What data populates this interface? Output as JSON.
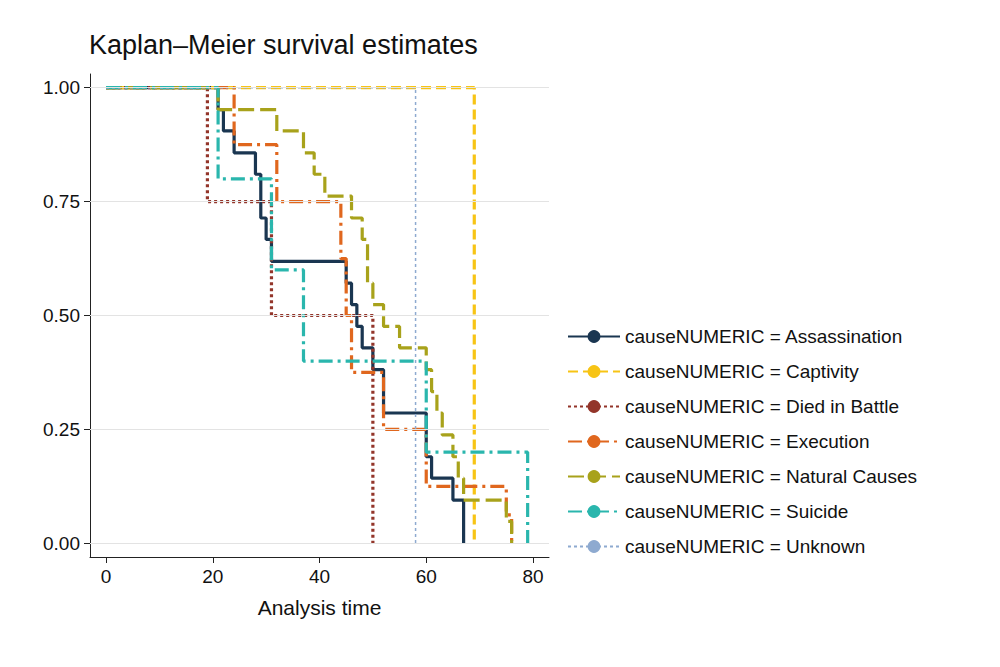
{
  "chart_data": {
    "type": "step",
    "title": "Kaplan–Meier survival estimates",
    "x_label": "Analysis time",
    "xlim": [
      -3,
      83
    ],
    "xticks": [
      0,
      20,
      40,
      60,
      80
    ],
    "ylim": [
      -0.03,
      1.03
    ],
    "yticks": [
      {
        "value": 0,
        "label": "0.00"
      },
      {
        "value": 0.25,
        "label": "0.25"
      },
      {
        "value": 0.5,
        "label": "0.50"
      },
      {
        "value": 0.75,
        "label": "0.75"
      },
      {
        "value": 1,
        "label": "1.00"
      }
    ],
    "grid": true,
    "legend": "right",
    "series": [
      {
        "name": "causeNUMERIC = Assassination",
        "color": "#1a3651",
        "line_style": "solid",
        "x": [
          0,
          21,
          22,
          24,
          28,
          29,
          30,
          31,
          45,
          46,
          47,
          48,
          50,
          52,
          60,
          61,
          65,
          67
        ],
        "values": [
          1,
          0.952,
          0.905,
          0.857,
          0.81,
          0.714,
          0.667,
          0.619,
          0.571,
          0.524,
          0.476,
          0.429,
          0.381,
          0.286,
          0.19,
          0.143,
          0.095,
          0
        ]
      },
      {
        "name": "causeNUMERIC = Captivity",
        "color": "#f7c415",
        "line_style": "dashed",
        "x": [
          0,
          69
        ],
        "values": [
          1,
          0
        ]
      },
      {
        "name": "causeNUMERIC = Died in Battle",
        "color": "#93352a",
        "line_style": "dotted",
        "x": [
          0,
          19,
          31,
          50
        ],
        "values": [
          1,
          0.75,
          0.5,
          0
        ]
      },
      {
        "name": "causeNUMERIC = Execution",
        "color": "#e0671e",
        "line_style": "dashdot",
        "x": [
          0,
          24,
          32,
          44,
          45,
          46,
          52,
          60,
          75,
          76
        ],
        "values": [
          1,
          0.875,
          0.75,
          0.625,
          0.5,
          0.375,
          0.25,
          0.125,
          0.0625,
          0
        ]
      },
      {
        "name": "causeNUMERIC = Natural Causes",
        "color": "#a8a21b",
        "line_style": "longdash",
        "x": [
          0,
          21,
          32,
          37,
          39,
          41,
          46,
          48,
          49,
          50,
          52,
          55,
          60,
          61,
          62,
          63,
          65,
          66,
          67,
          75,
          76
        ],
        "values": [
          1,
          0.952,
          0.905,
          0.857,
          0.81,
          0.762,
          0.714,
          0.667,
          0.571,
          0.524,
          0.476,
          0.429,
          0.381,
          0.333,
          0.286,
          0.238,
          0.19,
          0.143,
          0.095,
          0.048,
          0
        ]
      },
      {
        "name": "causeNUMERIC = Suicide",
        "color": "#2ab6ad",
        "line_style": "dashdot",
        "x": [
          0,
          21,
          31,
          37,
          60,
          79
        ],
        "values": [
          1,
          0.8,
          0.6,
          0.4,
          0.2,
          0
        ]
      },
      {
        "name": "causeNUMERIC = Unknown",
        "color": "#8eaad0",
        "line_style": "dotted",
        "x": [
          0,
          58
        ],
        "values": [
          1,
          0
        ]
      }
    ]
  }
}
